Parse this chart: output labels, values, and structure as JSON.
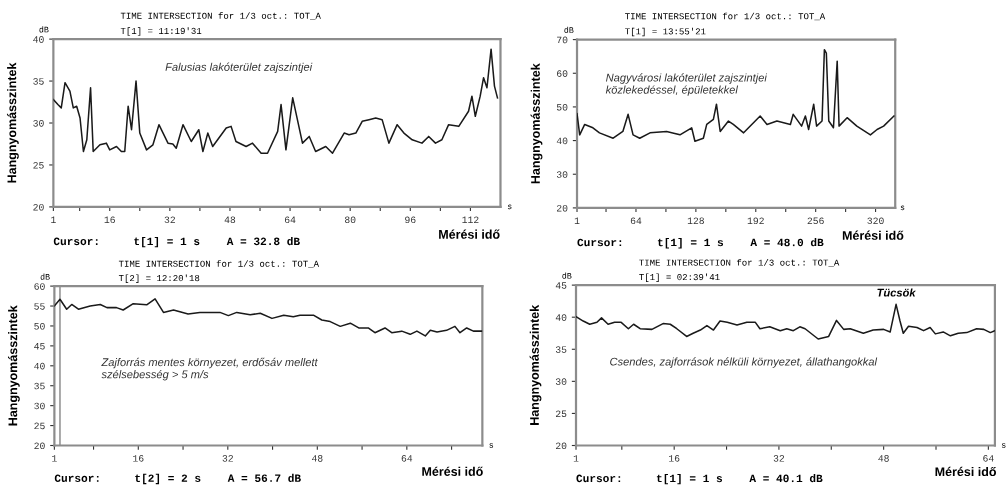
{
  "chart_data": [
    {
      "type": "line",
      "title": "TIME INTERSECTION for 1/3 oct.: TOT_A",
      "subtitle": "T[1] = 11:19'31",
      "ylabel": "Hangnyomásszintek",
      "xlabel": "Mérési idő",
      "annotations": [
        "dB",
        "s",
        "Falusias lakóterület zajszintjei",
        "Cursor:     t[1] = 1 s    A = 32.8 dB"
      ],
      "xlim": [
        1,
        120
      ],
      "xticks": [
        1,
        {
          "value": 8,
          "label": null
        },
        16,
        {
          "value": 24,
          "label": null
        },
        32,
        {
          "value": 40,
          "label": null
        },
        48,
        {
          "value": 56,
          "label": null
        },
        64,
        {
          "value": 72,
          "label": null
        },
        80,
        {
          "value": 88,
          "label": null
        },
        96,
        {
          "value": 104,
          "label": null
        },
        112
      ],
      "ylim": [
        20,
        40
      ],
      "yticks": [
        20,
        25,
        30,
        35,
        40
      ],
      "grid": false,
      "marker": "none",
      "line_style": "solid",
      "series": [
        {
          "color": "#1a1a1a",
          "x": [
            1,
            2.2,
            3.1,
            4.1,
            5.4,
            6.3,
            7.2,
            8.1,
            9,
            9.9,
            10.9,
            11.6,
            13.4,
            15.1,
            16,
            17.8,
            19.1,
            20,
            20.9,
            21.8,
            23,
            24,
            25.8,
            27.5,
            29.1,
            30.2,
            31.5,
            32.8,
            33.7,
            35.5,
            37.7,
            39.7,
            40.8,
            42.1,
            43.4,
            47,
            48.3,
            49.6,
            52.3,
            54,
            56.3,
            58,
            60.7,
            61.6,
            62.9,
            64.7,
            67.3,
            69.1,
            70.8,
            73.5,
            75.3,
            78.4,
            79.7,
            81.5,
            83.2,
            85,
            86.8,
            88.5,
            90.3,
            92.5,
            94.3,
            96.5,
            99.1,
            100.9,
            102.7,
            104.4,
            106.2,
            108.9,
            111.5,
            112.4,
            113.3,
            114.6,
            115.5,
            116.4,
            117.5,
            118.4,
            119.2
          ],
          "values": [
            32.8,
            32.2,
            31.8,
            34.8,
            33.8,
            31.8,
            32,
            30.6,
            26.6,
            28,
            34.2,
            26.6,
            27.4,
            27.6,
            26.8,
            27.2,
            26.6,
            26.6,
            32,
            29.2,
            35,
            28.8,
            26.8,
            27.4,
            29.8,
            28.8,
            27.6,
            27.5,
            27,
            29.8,
            27.8,
            29.2,
            26.6,
            28.8,
            27.2,
            29.4,
            29.6,
            27.8,
            27.2,
            27.6,
            26.4,
            26.4,
            29,
            32.2,
            26.8,
            33,
            27.6,
            28.4,
            26.6,
            27.2,
            26.4,
            28.8,
            28.6,
            28.8,
            30.2,
            30.4,
            30.6,
            30.4,
            27.6,
            29.8,
            28.8,
            28,
            27.6,
            28.4,
            27.6,
            28,
            29.8,
            29.6,
            31.4,
            33.2,
            30.8,
            33.2,
            35.4,
            34.2,
            38.8,
            34.4,
            33
          ]
        }
      ]
    },
    {
      "type": "line",
      "title": "TIME INTERSECTION for 1/3 oct.: TOT_A",
      "subtitle": "T[1] = 13:55'21",
      "ylabel": "Hangnyomásszintek",
      "xlabel": "Mérési idő",
      "annotations": [
        "dB",
        "s",
        "Nagyvárosi lakóterület zajszintjei\nközlekedéssel, épületekkel",
        "Cursor:     t[1] = 1 s    A = 48.0 dB"
      ],
      "xlim": [
        1,
        341
      ],
      "xticks": [
        1,
        {
          "value": 32,
          "label": null
        },
        64,
        {
          "value": 96,
          "label": null
        },
        128,
        {
          "value": 160,
          "label": null
        },
        192,
        {
          "value": 224,
          "label": null
        },
        256,
        {
          "value": 288,
          "label": null
        },
        320
      ],
      "ylim": [
        20,
        70
      ],
      "yticks": [
        20,
        30,
        40,
        50,
        60,
        70
      ],
      "grid": false,
      "marker": "none",
      "line_style": "solid",
      "series": [
        {
          "color": "#1a1a1a",
          "x": [
            1,
            3.9,
            9.2,
            18,
            25,
            39.6,
            50,
            55.6,
            60.9,
            68,
            79,
            96.7,
            111,
            123.5,
            127,
            136,
            139.6,
            146.7,
            150,
            154,
            162.8,
            168,
            179,
            196.7,
            204,
            214.6,
            229,
            232,
            241,
            245,
            248.5,
            253.9,
            257,
            262.8,
            265.3,
            267.4,
            270,
            275,
            279,
            281,
            289.6,
            300,
            314.5,
            321.6,
            328.6,
            339.6
          ],
          "values": [
            48,
            41.7,
            44.8,
            43.8,
            42.3,
            40.7,
            42.7,
            47.8,
            41.7,
            40.7,
            42.3,
            42.7,
            41.7,
            43.8,
            39.8,
            40.7,
            44.8,
            46.3,
            50.8,
            42.7,
            45.8,
            44.8,
            42.3,
            47.3,
            44.8,
            45.8,
            44.8,
            47.8,
            44.3,
            47.3,
            43.3,
            50.8,
            44.3,
            45.8,
            67,
            66,
            45.8,
            43.8,
            63.6,
            44.3,
            46.8,
            44.3,
            41.7,
            43.3,
            44.3,
            47.3
          ]
        }
      ]
    },
    {
      "type": "line",
      "title": "TIME INTERSECTION for 1/3 oct.: TOT_A",
      "subtitle": "T[2] = 12:20'18",
      "ylabel": "Hangnyomásszintek",
      "xlabel": "Mérési idő",
      "annotations": [
        "dB",
        "s",
        "Zajforrás mentes környezet, erdősáv mellett\nszélsebesség > 5 m/s",
        "Cursor:     t[2] = 2 s    A = 56.7 dB"
      ],
      "xlim": [
        1,
        77.5
      ],
      "xticks": [
        1,
        {
          "value": 8,
          "label": null
        },
        16,
        {
          "value": 24,
          "label": null
        },
        32,
        {
          "value": 40,
          "label": null
        },
        48,
        {
          "value": 56,
          "label": null
        },
        64,
        {
          "value": 72,
          "label": null
        }
      ],
      "ylim": [
        20,
        60
      ],
      "yticks": [
        20,
        25,
        30,
        35,
        40,
        45,
        50,
        55,
        60
      ],
      "grid": false,
      "marker": "none",
      "line_style": "solid",
      "ref_lines": [
        {
          "axis": "x",
          "value": 2,
          "color": "#999999"
        }
      ],
      "series": [
        {
          "color": "#1a1a1a",
          "x": [
            1,
            2,
            3.2,
            4.1,
            5.3,
            7.4,
            9.2,
            10.4,
            12.1,
            13.3,
            15.1,
            17.5,
            19,
            20.5,
            22.3,
            24.9,
            27,
            30.6,
            32.1,
            33.6,
            36,
            37.8,
            39.9,
            42,
            43.7,
            44.9,
            47.3,
            48.8,
            50.3,
            52.1,
            53.9,
            55.4,
            57.1,
            58.3,
            60.1,
            61.3,
            63.1,
            64.6,
            65.8,
            67.3,
            68.2,
            69.4,
            71.1,
            72.6,
            73.5,
            74.7,
            75.9,
            77.4
          ],
          "values": [
            55,
            56.7,
            54.2,
            55.4,
            54.2,
            55,
            55.4,
            54.6,
            54.6,
            54,
            55.6,
            55.3,
            56.8,
            53.4,
            54,
            53,
            53.4,
            53.4,
            52.6,
            53.4,
            52.8,
            53.2,
            51.9,
            52.7,
            52.3,
            52.7,
            52.7,
            51.5,
            51.1,
            49.9,
            50.7,
            49.5,
            49.5,
            48.3,
            49.5,
            48.3,
            48.7,
            47.9,
            48.7,
            47.5,
            48.9,
            48.5,
            48.9,
            49.9,
            48.3,
            49.5,
            48.7,
            48.7
          ]
        }
      ]
    },
    {
      "type": "line",
      "title": "TIME INTERSECTION for 1/3 oct.: TOT_A",
      "subtitle": "T[1] = 02:39'41",
      "ylabel": "Hangnyomásszintek",
      "xlabel": "Mérési idő",
      "annotations": [
        "dB",
        "s",
        "Csendes, zajforrások nélküli környezet, állathangokkal",
        "Cursor:     t[1] = 1 s    A = 40.1 dB",
        {
          "text": "Tücsök",
          "x": 49.9,
          "y": 42
        }
      ],
      "xlim": [
        1,
        65
      ],
      "xticks": [
        1,
        {
          "value": 8,
          "label": null
        },
        16,
        {
          "value": 24,
          "label": null
        },
        32,
        {
          "value": 40,
          "label": null
        },
        48,
        {
          "value": 56,
          "label": null
        },
        64
      ],
      "ylim": [
        20,
        45
      ],
      "yticks": [
        20,
        25,
        30,
        35,
        40,
        45
      ],
      "grid": false,
      "marker": "none",
      "line_style": "solid",
      "series": [
        {
          "color": "#1a1a1a",
          "x": [
            1,
            2.1,
            3.1,
            4.2,
            4.9,
            5.9,
            6.9,
            7.9,
            9,
            9.8,
            10.8,
            12.6,
            14.3,
            15.4,
            16.4,
            17.9,
            18.9,
            20,
            21,
            22,
            23,
            24.1,
            25.6,
            27.1,
            28.4,
            29.1,
            30.6,
            32.2,
            33.2,
            34.2,
            35.2,
            36,
            38,
            39.6,
            40.8,
            41.9,
            42.9,
            44.9,
            46.4,
            48,
            49,
            49.9,
            50.5,
            51,
            51.8,
            53.1,
            54.1,
            55.1,
            55.9,
            57.1,
            58.2,
            59.4,
            60.7,
            62.2,
            63.3,
            64.3,
            65
          ],
          "values": [
            40.1,
            39.4,
            38.9,
            39.2,
            39.9,
            38.9,
            39.2,
            39.2,
            38.2,
            38.9,
            38.2,
            38.1,
            39,
            38.9,
            38.2,
            37,
            37.5,
            38,
            38.7,
            38,
            39.4,
            39.2,
            38.8,
            39.2,
            39.2,
            38.2,
            38.5,
            37.9,
            38.2,
            37.9,
            38.5,
            38.2,
            36.6,
            37,
            39.5,
            38.1,
            38.2,
            37.5,
            38,
            38.1,
            37.7,
            42,
            39.4,
            37.5,
            38.6,
            38.4,
            37.9,
            38.4,
            37.4,
            37.7,
            37.1,
            37.5,
            37.6,
            38.2,
            38.1,
            37.6,
            37.9
          ]
        }
      ]
    }
  ]
}
